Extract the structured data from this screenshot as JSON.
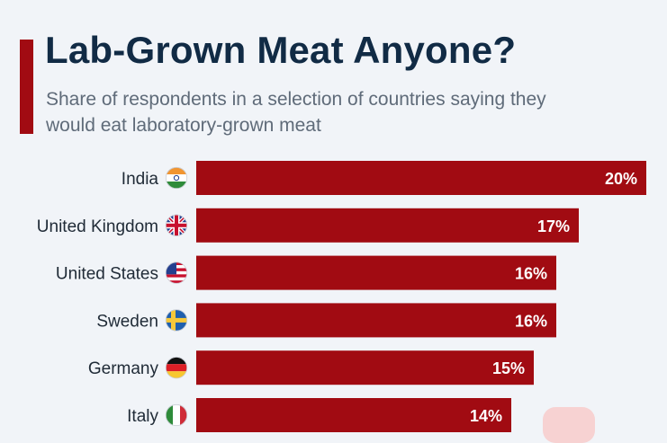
{
  "header": {
    "title": "Lab-Grown Meat Anyone?",
    "subtitle": "Share of respondents in a selection of countries saying they would eat laboratory-grown meat"
  },
  "colors": {
    "bar": "#a10b12",
    "title": "#112b45",
    "accent": "#a10b12"
  },
  "chart_data": {
    "type": "bar",
    "orientation": "horizontal",
    "categories": [
      "India",
      "United Kingdom",
      "United States",
      "Sweden",
      "Germany",
      "Italy"
    ],
    "values": [
      20,
      17,
      16,
      16,
      15,
      14
    ],
    "value_labels": [
      "20%",
      "17%",
      "16%",
      "16%",
      "15%",
      "14%"
    ],
    "flags": [
      "india-flag-icon",
      "united-kingdom-flag-icon",
      "united-states-flag-icon",
      "sweden-flag-icon",
      "germany-flag-icon",
      "italy-flag-icon"
    ],
    "xlim": [
      0,
      20
    ],
    "grid": false
  }
}
